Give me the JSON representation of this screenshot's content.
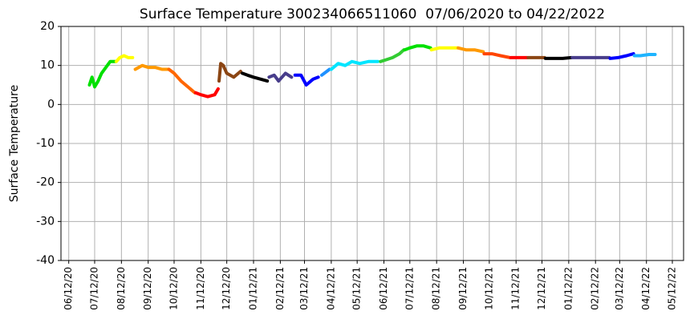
{
  "chart_data": {
    "type": "line",
    "title": "Surface Temperature 300234066511060  07/06/2020 to 04/22/2022",
    "ylabel": "Surface Temperature",
    "ylim": [
      -40,
      20
    ],
    "yticks": [
      -40,
      -30,
      -20,
      -10,
      0,
      10,
      20
    ],
    "xlim": [
      "2020-06-03",
      "2022-05-25"
    ],
    "xticks": [
      {
        "value": "2020-06-12",
        "label": "06/12/20"
      },
      {
        "value": "2020-07-12",
        "label": "07/12/20"
      },
      {
        "value": "2020-08-12",
        "label": "08/12/20"
      },
      {
        "value": "2020-09-12",
        "label": "09/12/20"
      },
      {
        "value": "2020-10-12",
        "label": "10/12/20"
      },
      {
        "value": "2020-11-12",
        "label": "11/12/20"
      },
      {
        "value": "2020-12-12",
        "label": "12/12/20"
      },
      {
        "value": "2021-01-12",
        "label": "01/12/21"
      },
      {
        "value": "2021-02-12",
        "label": "02/12/21"
      },
      {
        "value": "2021-03-12",
        "label": "03/12/21"
      },
      {
        "value": "2021-04-12",
        "label": "04/12/21"
      },
      {
        "value": "2021-05-12",
        "label": "05/12/21"
      },
      {
        "value": "2021-06-12",
        "label": "06/12/21"
      },
      {
        "value": "2021-07-12",
        "label": "07/12/21"
      },
      {
        "value": "2021-08-12",
        "label": "08/12/21"
      },
      {
        "value": "2021-09-12",
        "label": "09/12/21"
      },
      {
        "value": "2021-10-12",
        "label": "10/12/21"
      },
      {
        "value": "2021-11-12",
        "label": "11/12/21"
      },
      {
        "value": "2021-12-12",
        "label": "12/12/21"
      },
      {
        "value": "2022-01-12",
        "label": "01/12/22"
      },
      {
        "value": "2022-02-12",
        "label": "02/12/22"
      },
      {
        "value": "2022-03-12",
        "label": "03/12/22"
      },
      {
        "value": "2022-04-12",
        "label": "04/12/22"
      },
      {
        "value": "2022-05-12",
        "label": "05/12/22"
      }
    ],
    "grid": true,
    "series": [
      {
        "color": "#00e000",
        "x": [
          "2020-07-06",
          "2020-07-09",
          "2020-07-12",
          "2020-07-16",
          "2020-07-20",
          "2020-07-25",
          "2020-07-30",
          "2020-08-05"
        ],
        "values": [
          5,
          7,
          4.5,
          6,
          8,
          9.5,
          11,
          11
        ]
      },
      {
        "color": "#ffff00",
        "x": [
          "2020-08-06",
          "2020-08-10",
          "2020-08-15",
          "2020-08-20",
          "2020-08-25"
        ],
        "values": [
          11,
          12,
          12.5,
          12,
          12
        ]
      },
      {
        "color": "#ff9900",
        "x": [
          "2020-08-28",
          "2020-09-01",
          "2020-09-05",
          "2020-09-12",
          "2020-09-20",
          "2020-09-28",
          "2020-10-05"
        ],
        "values": [
          9,
          9.5,
          10,
          9.5,
          9.5,
          9,
          9
        ]
      },
      {
        "color": "#ff6600",
        "x": [
          "2020-10-06",
          "2020-10-12",
          "2020-10-20",
          "2020-10-28",
          "2020-11-05"
        ],
        "values": [
          9,
          8,
          6,
          4.5,
          3
        ]
      },
      {
        "color": "#ff0000",
        "x": [
          "2020-11-06",
          "2020-11-12",
          "2020-11-20",
          "2020-11-28",
          "2020-12-02"
        ],
        "values": [
          3,
          2.5,
          2,
          2.5,
          4
        ]
      },
      {
        "color": "#8b4513",
        "x": [
          "2020-12-03",
          "2020-12-05",
          "2020-12-08",
          "2020-12-12",
          "2020-12-20",
          "2020-12-28"
        ],
        "values": [
          6,
          10.5,
          10,
          8,
          7,
          8.5
        ]
      },
      {
        "color": "#000000",
        "x": [
          "2020-12-30",
          "2021-01-05",
          "2021-01-12",
          "2021-01-20",
          "2021-01-28"
        ],
        "values": [
          8,
          7.5,
          7,
          6.5,
          6
        ]
      },
      {
        "color": "#483d8b",
        "x": [
          "2021-01-30",
          "2021-02-05",
          "2021-02-10",
          "2021-02-18",
          "2021-02-25"
        ],
        "values": [
          7,
          7.5,
          6,
          8,
          7
        ]
      },
      {
        "color": "#0000ff",
        "x": [
          "2021-03-01",
          "2021-03-08",
          "2021-03-14",
          "2021-03-22",
          "2021-03-28"
        ],
        "values": [
          7.5,
          7.5,
          5,
          6.5,
          7
        ]
      },
      {
        "color": "#1e90ff",
        "x": [
          "2021-04-01",
          "2021-04-10"
        ],
        "values": [
          7.5,
          9
        ]
      },
      {
        "color": "#00e5ff",
        "x": [
          "2021-04-12",
          "2021-04-20",
          "2021-04-28",
          "2021-05-06",
          "2021-05-15",
          "2021-05-25",
          "2021-06-05"
        ],
        "values": [
          9,
          10.5,
          10,
          11,
          10.5,
          11,
          11
        ]
      },
      {
        "color": "#33cc33",
        "x": [
          "2021-06-08",
          "2021-06-15",
          "2021-06-22",
          "2021-06-30",
          "2021-07-05"
        ],
        "values": [
          11,
          11.5,
          12,
          13,
          14
        ]
      },
      {
        "color": "#00e000",
        "x": [
          "2021-07-06",
          "2021-07-12",
          "2021-07-20",
          "2021-07-28",
          "2021-08-05"
        ],
        "values": [
          14,
          14.5,
          15,
          15,
          14.5
        ]
      },
      {
        "color": "#ffff00",
        "x": [
          "2021-08-06",
          "2021-08-15",
          "2021-08-25",
          "2021-09-05"
        ],
        "values": [
          14,
          14.5,
          14.5,
          14.5
        ]
      },
      {
        "color": "#ff9900",
        "x": [
          "2021-09-06",
          "2021-09-15",
          "2021-09-25",
          "2021-10-05"
        ],
        "values": [
          14.5,
          14,
          14,
          13.5
        ]
      },
      {
        "color": "#ff4500",
        "x": [
          "2021-10-06",
          "2021-10-15",
          "2021-10-25",
          "2021-11-05"
        ],
        "values": [
          13,
          13,
          12.5,
          12
        ]
      },
      {
        "color": "#ff0000",
        "x": [
          "2021-11-06",
          "2021-11-15",
          "2021-11-25"
        ],
        "values": [
          12,
          12,
          12
        ]
      },
      {
        "color": "#8b4513",
        "x": [
          "2021-11-26",
          "2021-12-05",
          "2021-12-15"
        ],
        "values": [
          12,
          12,
          12
        ]
      },
      {
        "color": "#000000",
        "x": [
          "2021-12-16",
          "2021-12-25",
          "2022-01-05",
          "2022-01-15"
        ],
        "values": [
          11.8,
          11.8,
          11.8,
          12
        ]
      },
      {
        "color": "#483d8b",
        "x": [
          "2022-01-16",
          "2022-02-01",
          "2022-02-15",
          "2022-02-28"
        ],
        "values": [
          12,
          12,
          12,
          12
        ]
      },
      {
        "color": "#0000ff",
        "x": [
          "2022-03-01",
          "2022-03-10",
          "2022-03-20",
          "2022-03-28"
        ],
        "values": [
          11.8,
          12,
          12.5,
          13
        ]
      },
      {
        "color": "#1eb4ff",
        "x": [
          "2022-03-29",
          "2022-04-05",
          "2022-04-15",
          "2022-04-22"
        ],
        "values": [
          12.5,
          12.5,
          12.8,
          12.8
        ]
      }
    ]
  }
}
